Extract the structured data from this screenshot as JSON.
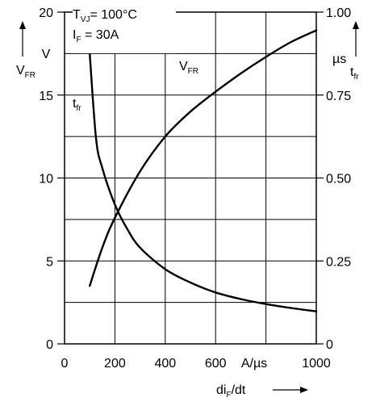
{
  "chart_data": {
    "type": "line",
    "conditions": {
      "line1": {
        "symbol": "T",
        "sub": "VJ",
        "text": "= 100°C"
      },
      "line2": {
        "symbol": "I",
        "sub": "F",
        "text": " = 30A"
      }
    },
    "x_axis": {
      "label": {
        "main": "di",
        "sub": "F",
        "tail": "/dt"
      },
      "range": [
        0,
        1000
      ],
      "ticks": [
        "0",
        "200",
        "400",
        "600",
        "1000"
      ],
      "unit_label": "A/µs"
    },
    "y_left": {
      "range": [
        0,
        20
      ],
      "ticks": [
        "0",
        "5",
        "10",
        "15",
        "20"
      ],
      "unit": "V",
      "label": {
        "main": "V",
        "sub": "FR"
      }
    },
    "y_right": {
      "range": [
        0,
        1.0
      ],
      "ticks": [
        "0",
        "0.25",
        "0.50",
        "0.75",
        "1.00"
      ],
      "unit": "µs",
      "label": {
        "main": "t",
        "sub": "fr"
      }
    },
    "grid": true,
    "series": [
      {
        "name": {
          "main": "V",
          "sub": "FR"
        },
        "axis": "left",
        "x": [
          100,
          150,
          200,
          300,
          400,
          500,
          600,
          700,
          800,
          900,
          1000
        ],
        "y": [
          3.5,
          5.8,
          7.6,
          10.4,
          12.5,
          14.0,
          15.2,
          16.3,
          17.3,
          18.2,
          18.9
        ]
      },
      {
        "name": {
          "main": "t",
          "sub": "fr"
        },
        "axis": "right",
        "x": [
          100,
          125,
          150,
          200,
          250,
          300,
          400,
          500,
          600,
          700,
          800,
          900,
          1000
        ],
        "y": [
          0.875,
          0.62,
          0.53,
          0.42,
          0.345,
          0.29,
          0.225,
          0.185,
          0.155,
          0.135,
          0.12,
          0.108,
          0.098
        ]
      }
    ]
  }
}
